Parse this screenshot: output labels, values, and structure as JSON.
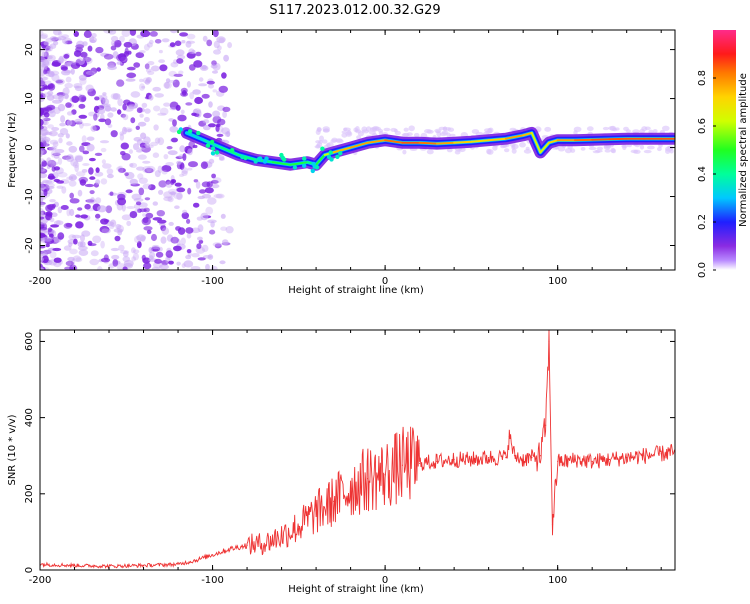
{
  "title": "S117.2023.012.00.32.G29",
  "colors": {
    "snr_line": "#ee3333",
    "axis": "#000000",
    "background": "#ffffff",
    "scatter_base": "#7a1ee0"
  },
  "chart_data": [
    {
      "id": "spectrogram",
      "type": "heatmap",
      "xlabel": "Height of straight line (km)",
      "ylabel": "Frequency (Hz)",
      "xlim": [
        -200,
        168
      ],
      "ylim": [
        -25,
        24
      ],
      "x_ticks": [
        -200,
        -100,
        0,
        100
      ],
      "x_tick_labels": [
        "-200",
        "-100",
        "0",
        "100"
      ],
      "y_ticks": [
        -20,
        -10,
        0,
        10,
        20
      ],
      "y_tick_labels": [
        "-20",
        "-10",
        "0",
        "10",
        "20"
      ],
      "grid": false,
      "colorbar": {
        "label": "Normalized spectral amplitude",
        "range": [
          0,
          1
        ],
        "ticks": [
          0.0,
          0.2,
          0.4,
          0.6,
          0.8
        ],
        "tick_labels": [
          "0.0",
          "0.2",
          "0.4",
          "0.6",
          "0.8"
        ],
        "colormap": "hsv-reversed (violet-blue-cyan-green-yellow-red-magenta)"
      },
      "ridge": {
        "name": "",
        "x": [
          -115,
          -105,
          -95,
          -85,
          -75,
          -65,
          -55,
          -45,
          -40,
          -35,
          -30,
          -20,
          -10,
          0,
          10,
          20,
          30,
          40,
          50,
          60,
          70,
          80,
          85,
          90,
          95,
          100,
          110,
          120,
          130,
          140,
          150,
          160,
          168
        ],
        "y": [
          3,
          1.5,
          0,
          -1.5,
          -2.5,
          -3,
          -3.5,
          -3,
          -3.5,
          -1.5,
          -1,
          0,
          1,
          1.5,
          1,
          1,
          0.8,
          1,
          1.2,
          1.5,
          1.8,
          2.5,
          3,
          -1,
          1,
          1.5,
          1.5,
          1.6,
          1.7,
          1.8,
          1.8,
          1.8,
          1.8
        ],
        "amplitude": [
          0.3,
          0.35,
          0.4,
          0.45,
          0.4,
          0.45,
          0.5,
          0.45,
          0.4,
          0.55,
          0.7,
          0.8,
          0.75,
          0.8,
          0.85,
          0.85,
          0.8,
          0.75,
          0.7,
          0.7,
          0.75,
          0.8,
          0.7,
          0.6,
          0.7,
          0.75,
          0.8,
          0.85,
          0.85,
          0.85,
          0.85,
          0.85,
          0.85
        ]
      }
    },
    {
      "id": "snr",
      "type": "line",
      "xlabel": "Height of straight line (km)",
      "ylabel": "SNR (10 * v/v)",
      "xlim": [
        -200,
        168
      ],
      "ylim": [
        0,
        630
      ],
      "x_ticks": [
        -200,
        -100,
        0,
        100
      ],
      "x_tick_labels": [
        "-200",
        "-100",
        "0",
        "100"
      ],
      "y_ticks": [
        0,
        200,
        400,
        600
      ],
      "y_tick_labels": [
        "0",
        "200",
        "400",
        "600"
      ],
      "grid": false,
      "series": [
        {
          "name": "",
          "x": [
            -200,
            -180,
            -160,
            -140,
            -120,
            -110,
            -100,
            -90,
            -80,
            -70,
            -60,
            -50,
            -40,
            -30,
            -20,
            -10,
            0,
            10,
            20,
            30,
            40,
            50,
            60,
            70,
            72,
            75,
            80,
            85,
            90,
            93,
            95,
            97,
            100,
            105,
            110,
            120,
            130,
            140,
            150,
            160,
            168
          ],
          "y": [
            15,
            12,
            10,
            12,
            15,
            25,
            40,
            55,
            65,
            70,
            90,
            115,
            150,
            180,
            215,
            240,
            250,
            275,
            280,
            285,
            290,
            290,
            295,
            295,
            350,
            300,
            290,
            295,
            300,
            380,
            600,
            120,
            285,
            285,
            290,
            285,
            290,
            295,
            300,
            305,
            310
          ]
        }
      ],
      "annotations": []
    }
  ]
}
